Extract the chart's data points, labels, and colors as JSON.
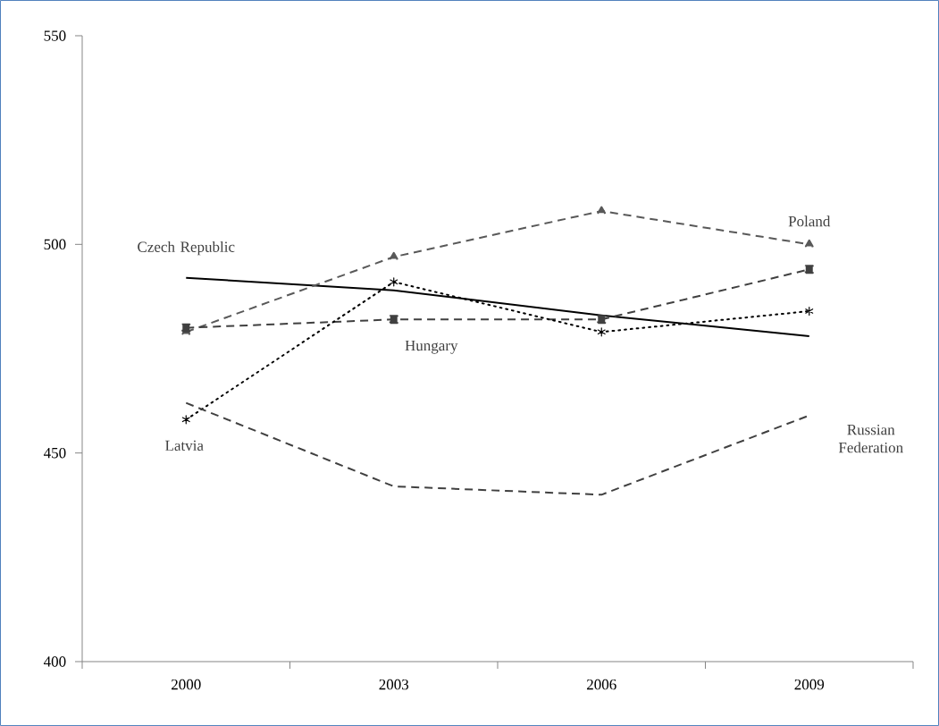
{
  "chart_data": {
    "type": "line",
    "categories": [
      "2000",
      "2003",
      "2006",
      "2009"
    ],
    "series": [
      {
        "name": "Czech Republic",
        "color": "#000000",
        "values": [
          492,
          489,
          483,
          478
        ],
        "marker": "none",
        "line_style": "solid"
      },
      {
        "name": "Poland",
        "color": "#595959",
        "values": [
          479,
          497,
          508,
          500
        ],
        "marker": "triangle",
        "line_style": "dashed"
      },
      {
        "name": "Hungary",
        "color": "#404040",
        "values": [
          480,
          482,
          482,
          494
        ],
        "marker": "square",
        "line_style": "dashed"
      },
      {
        "name": "Latvia",
        "color": "#000000",
        "values": [
          458,
          491,
          479,
          484
        ],
        "marker": "cross",
        "line_style": "dotted"
      },
      {
        "name": "Russian Federation",
        "color": "#404040",
        "values": [
          462,
          442,
          440,
          459
        ],
        "marker": "none",
        "line_style": "dashed"
      }
    ],
    "ylim": [
      400,
      550
    ],
    "yticks": [
      400,
      450,
      500,
      550
    ],
    "grid": false
  }
}
